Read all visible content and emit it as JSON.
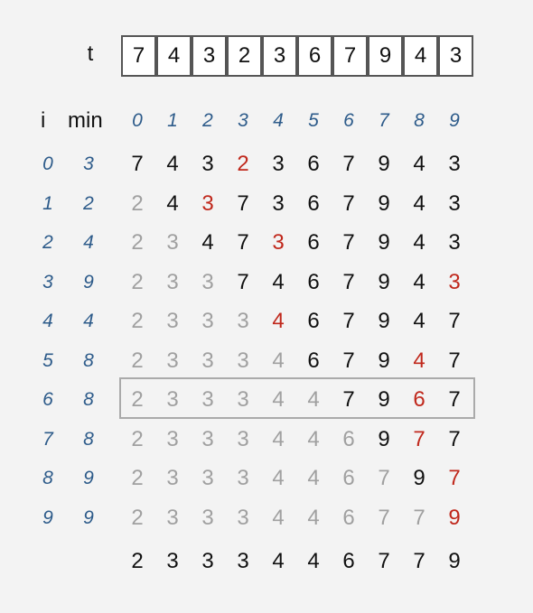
{
  "array_label": "t",
  "array": [
    7,
    4,
    3,
    2,
    3,
    6,
    7,
    9,
    4,
    3
  ],
  "headers": {
    "i": "i",
    "min": "min",
    "columns": [
      0,
      1,
      2,
      3,
      4,
      5,
      6,
      7,
      8,
      9
    ]
  },
  "rows": [
    {
      "i": 0,
      "min": 3,
      "values": [
        7,
        4,
        3,
        2,
        3,
        6,
        7,
        9,
        4,
        3
      ],
      "gray_before": 0,
      "red": 3
    },
    {
      "i": 1,
      "min": 2,
      "values": [
        2,
        4,
        3,
        7,
        3,
        6,
        7,
        9,
        4,
        3
      ],
      "gray_before": 1,
      "red": 2
    },
    {
      "i": 2,
      "min": 4,
      "values": [
        2,
        3,
        4,
        7,
        3,
        6,
        7,
        9,
        4,
        3
      ],
      "gray_before": 2,
      "red": 4
    },
    {
      "i": 3,
      "min": 9,
      "values": [
        2,
        3,
        3,
        7,
        4,
        6,
        7,
        9,
        4,
        3
      ],
      "gray_before": 3,
      "red": 9
    },
    {
      "i": 4,
      "min": 4,
      "values": [
        2,
        3,
        3,
        3,
        4,
        6,
        7,
        9,
        4,
        7
      ],
      "gray_before": 4,
      "red": 4
    },
    {
      "i": 5,
      "min": 8,
      "values": [
        2,
        3,
        3,
        3,
        4,
        6,
        7,
        9,
        4,
        7
      ],
      "gray_before": 5,
      "red": 8
    },
    {
      "i": 6,
      "min": 8,
      "values": [
        2,
        3,
        3,
        3,
        4,
        4,
        7,
        9,
        6,
        7
      ],
      "gray_before": 6,
      "red": 8
    },
    {
      "i": 7,
      "min": 8,
      "values": [
        2,
        3,
        3,
        3,
        4,
        4,
        6,
        9,
        7,
        7
      ],
      "gray_before": 7,
      "red": 8
    },
    {
      "i": 8,
      "min": 9,
      "values": [
        2,
        3,
        3,
        3,
        4,
        4,
        6,
        7,
        9,
        7
      ],
      "gray_before": 8,
      "red": 9
    },
    {
      "i": 9,
      "min": 9,
      "values": [
        2,
        3,
        3,
        3,
        4,
        4,
        6,
        7,
        7,
        9
      ],
      "gray_before": 9,
      "red": 9
    }
  ],
  "highlighted_row": 6,
  "final": [
    2,
    3,
    3,
    3,
    4,
    4,
    6,
    7,
    7,
    9
  ],
  "colors": {
    "index": "#2d5b8a",
    "normal": "#111111",
    "sorted": "#a0a0a0",
    "min": "#c0281c",
    "highlight_border": "#aaaaaa"
  }
}
